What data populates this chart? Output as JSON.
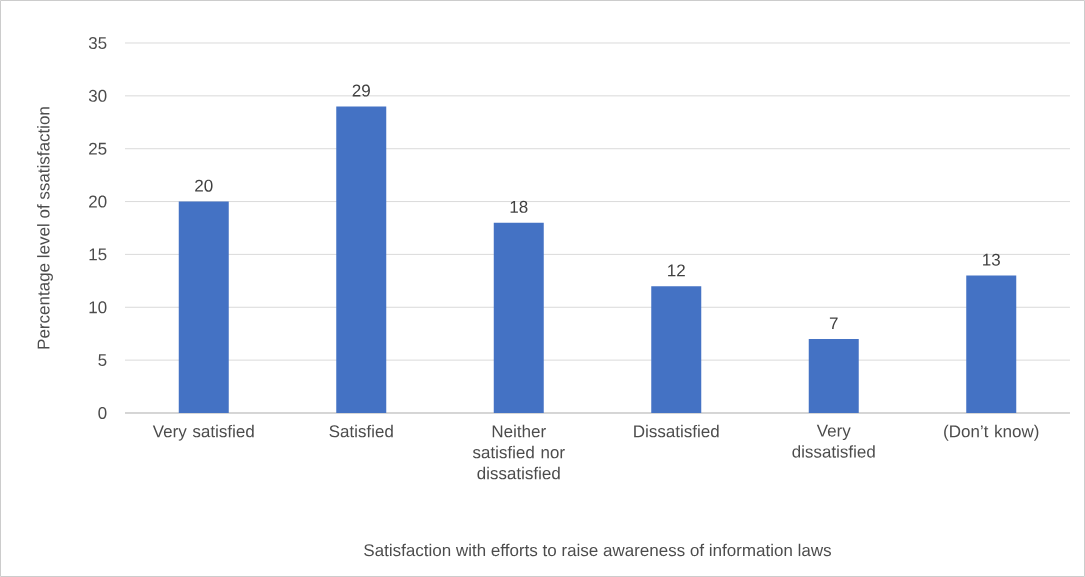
{
  "chart_data": {
    "type": "bar",
    "xlabel": "Satisfaction with efforts to raise awareness of information laws",
    "ylabel": "Percentage level of ssatisfaction",
    "categories": [
      "Very satisfied",
      "Satisfied",
      "Neither satisfied nor dissatisfied",
      "Dissatisfied",
      "Very dissatisfied",
      "(Don’t know)"
    ],
    "values": [
      20,
      29,
      18,
      12,
      7,
      13
    ],
    "color": "#4472c4",
    "ylim": [
      0,
      35
    ],
    "yticks": [
      0,
      5,
      10,
      15,
      20,
      25,
      30,
      35
    ],
    "grid": "y",
    "data_labels": true
  }
}
